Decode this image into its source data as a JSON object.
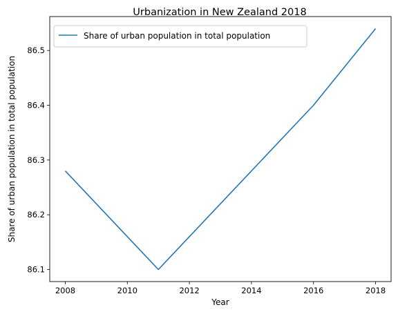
{
  "chart_data": {
    "type": "line",
    "title": "Urbanization in New Zealand 2018",
    "xlabel": "Year",
    "ylabel": "Share of urban population in total population",
    "series": [
      {
        "name": "Share of urban population in total population",
        "color": "#1f77b4",
        "x": [
          2008,
          2011,
          2016,
          2018
        ],
        "y": [
          86.28,
          86.1,
          86.4,
          86.54
        ]
      }
    ],
    "xlim": [
      2007.5,
      2018.5
    ],
    "ylim": [
      86.078,
      86.562
    ],
    "xticks": [
      2008,
      2010,
      2012,
      2014,
      2016,
      2018
    ],
    "yticks": [
      86.1,
      86.2,
      86.3,
      86.4,
      86.5
    ],
    "ytick_labels": [
      "86.1",
      "86.2",
      "86.3",
      "86.4",
      "86.5"
    ],
    "grid": false,
    "legend_position": "upper-left"
  }
}
